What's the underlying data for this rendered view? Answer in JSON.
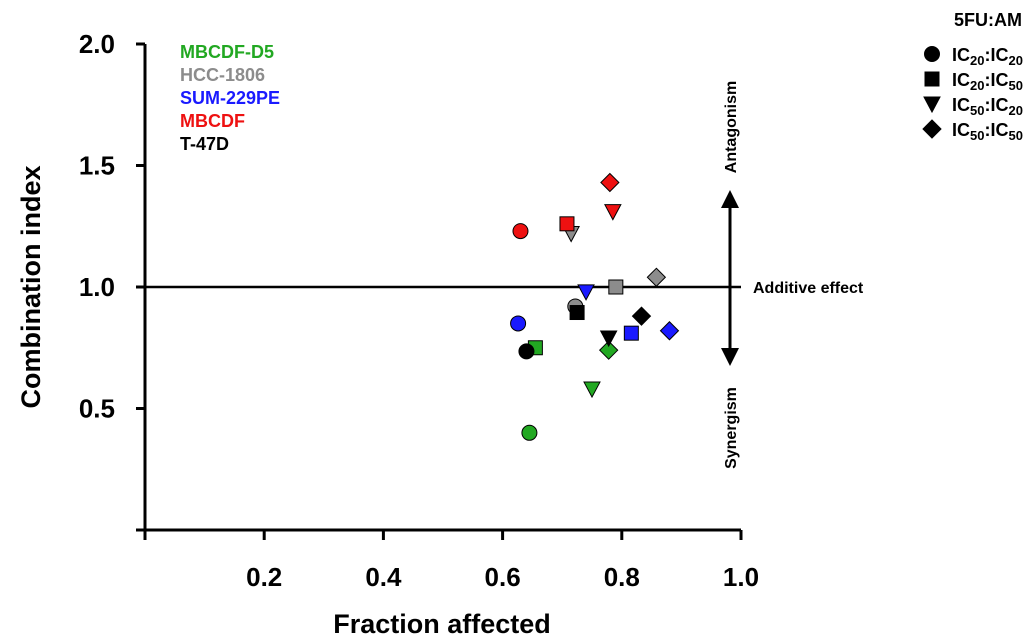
{
  "chart_data": {
    "type": "scatter",
    "xlabel": "Fraction affected",
    "ylabel": "Combination index",
    "xlim": [
      0,
      1.0
    ],
    "ylim": [
      0,
      2.0
    ],
    "xticks": [
      0.2,
      0.4,
      0.6,
      0.8,
      1.0
    ],
    "xtick_labels": [
      "0.2",
      "0.4",
      "0.6",
      "0.8",
      "1.0"
    ],
    "yticks": [
      0.5,
      1.0,
      1.5,
      2.0
    ],
    "ytick_labels": [
      "0.5",
      "1.0",
      "1.5",
      "2.0"
    ],
    "reference_line": {
      "y": 1.0,
      "label": "Additive effect"
    },
    "annotations": {
      "up": "Antagonism",
      "down": "Synergism"
    },
    "cell_lines": [
      {
        "name": "MBCDF-D5",
        "color": "#22a822"
      },
      {
        "name": "HCC-1806",
        "color": "#8c8c8c"
      },
      {
        "name": "SUM-229PE",
        "color": "#1a1aff"
      },
      {
        "name": "MBCDF",
        "color": "#ee1111"
      },
      {
        "name": "T-47D",
        "color": "#000000"
      }
    ],
    "legend": {
      "title": "5FU:AM",
      "entries": [
        {
          "marker": "circle",
          "label": "IC",
          "s1": "20",
          "mid": ":IC",
          "s2": "20"
        },
        {
          "marker": "square",
          "label": "IC",
          "s1": "20",
          "mid": ":IC",
          "s2": "50"
        },
        {
          "marker": "triangle-down",
          "label": "IC",
          "s1": "50",
          "mid": ":IC",
          "s2": "20"
        },
        {
          "marker": "diamond",
          "label": "IC",
          "s1": "50",
          "mid": ":IC",
          "s2": "50"
        }
      ]
    },
    "series": [
      {
        "name": "MBCDF-D5",
        "color": "#22a822",
        "points": [
          {
            "ratio": "IC20:IC20",
            "marker": "circle",
            "x": 0.645,
            "y": 0.4
          },
          {
            "ratio": "IC20:IC50",
            "marker": "square",
            "x": 0.655,
            "y": 0.75
          },
          {
            "ratio": "IC50:IC20",
            "marker": "triangle-down",
            "x": 0.75,
            "y": 0.58
          },
          {
            "ratio": "IC50:IC50",
            "marker": "diamond",
            "x": 0.778,
            "y": 0.74
          }
        ]
      },
      {
        "name": "HCC-1806",
        "color": "#8c8c8c",
        "points": [
          {
            "ratio": "IC20:IC20",
            "marker": "circle",
            "x": 0.722,
            "y": 0.92
          },
          {
            "ratio": "IC20:IC50",
            "marker": "square",
            "x": 0.79,
            "y": 1.0
          },
          {
            "ratio": "IC50:IC20",
            "marker": "triangle-down",
            "x": 0.715,
            "y": 1.22
          },
          {
            "ratio": "IC50:IC50",
            "marker": "diamond",
            "x": 0.858,
            "y": 1.04
          }
        ]
      },
      {
        "name": "SUM-229PE",
        "color": "#1a1aff",
        "points": [
          {
            "ratio": "IC20:IC20",
            "marker": "circle",
            "x": 0.626,
            "y": 0.85
          },
          {
            "ratio": "IC20:IC50",
            "marker": "square",
            "x": 0.816,
            "y": 0.81
          },
          {
            "ratio": "IC50:IC20",
            "marker": "triangle-down",
            "x": 0.74,
            "y": 0.98
          },
          {
            "ratio": "IC50:IC50",
            "marker": "diamond",
            "x": 0.88,
            "y": 0.82
          }
        ]
      },
      {
        "name": "MBCDF",
        "color": "#ee1111",
        "points": [
          {
            "ratio": "IC20:IC20",
            "marker": "circle",
            "x": 0.63,
            "y": 1.23
          },
          {
            "ratio": "IC20:IC50",
            "marker": "square",
            "x": 0.708,
            "y": 1.26
          },
          {
            "ratio": "IC50:IC20",
            "marker": "triangle-down",
            "x": 0.785,
            "y": 1.31
          },
          {
            "ratio": "IC50:IC50",
            "marker": "diamond",
            "x": 0.78,
            "y": 1.43
          }
        ]
      },
      {
        "name": "T-47D",
        "color": "#000000",
        "points": [
          {
            "ratio": "IC20:IC20",
            "marker": "circle",
            "x": 0.64,
            "y": 0.735
          },
          {
            "ratio": "IC20:IC50",
            "marker": "square",
            "x": 0.725,
            "y": 0.895
          },
          {
            "ratio": "IC50:IC20",
            "marker": "triangle-down",
            "x": 0.778,
            "y": 0.79
          },
          {
            "ratio": "IC50:IC50",
            "marker": "diamond",
            "x": 0.833,
            "y": 0.88
          }
        ]
      }
    ]
  }
}
